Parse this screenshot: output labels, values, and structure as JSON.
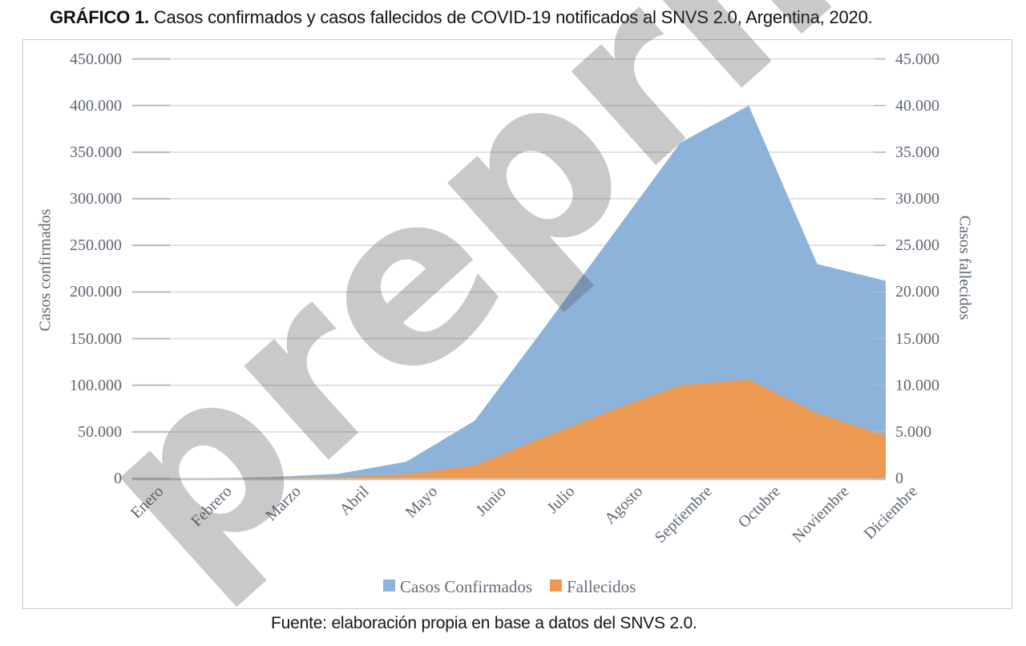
{
  "title": {
    "prefix": "GRÁFICO 1.",
    "text": " Casos confirmados y casos fallecidos de COVID-19 notificados al SNVS 2.0, Argentina, 2020."
  },
  "footer": {
    "text": "Fuente: elaboración propia en base a datos del SNVS 2.0."
  },
  "watermark": {
    "text": "preprint",
    "color": "#4d4d4d",
    "opacity": 0.3
  },
  "legend": {
    "position": "bottom",
    "items": [
      {
        "label": "Casos Confirmados",
        "color": "#8db3db"
      },
      {
        "label": "Fallecidos",
        "color": "#ec9a52"
      }
    ]
  },
  "colors": {
    "confirmed_fill": "#8db3db",
    "deaths_fill": "#ec9a52",
    "gridline": "#d9d9d9",
    "tick_mark": "#b5bac0",
    "baseline": "#c9c9c9",
    "axis_text": "#5d6773",
    "box_border": "#c7ccd1"
  },
  "chart_data": {
    "type": "area",
    "title": "Casos confirmados y casos fallecidos de COVID-19 notificados al SNVS 2.0, Argentina, 2020",
    "categories": [
      "Enero",
      "Febrero",
      "Marzo",
      "Abril",
      "Mayo",
      "Junio",
      "Julio",
      "Agosto",
      "Septiembre",
      "Octubre",
      "Noviembre",
      "Diciembre"
    ],
    "series": [
      {
        "name": "Casos Confirmados",
        "axis": "left",
        "color": "#8db3db",
        "values": [
          0,
          100,
          1500,
          5000,
          18000,
          62000,
          160000,
          260000,
          360000,
          400000,
          230000,
          212000
        ]
      },
      {
        "name": "Fallecidos",
        "axis": "right",
        "color": "#ec9a52",
        "values": [
          0,
          10,
          50,
          150,
          450,
          1400,
          4400,
          7300,
          10000,
          10600,
          7000,
          4600
        ]
      }
    ],
    "left_axis": {
      "label": "Casos confirmados",
      "min": 0,
      "max": 450000,
      "step": 50000
    },
    "right_axis": {
      "label": "Casos fallecidos",
      "min": 0,
      "max": 45000,
      "step": 5000
    },
    "grid": true,
    "legend_position": "bottom",
    "number_format": "thousands-dot"
  }
}
